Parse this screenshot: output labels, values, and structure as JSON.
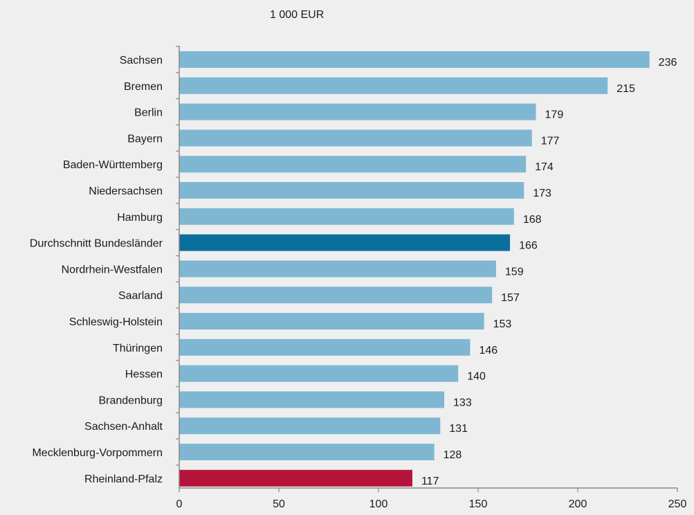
{
  "colors": {
    "background": "#efefef",
    "bar_default": "#7fb7d3",
    "bar_average": "#0b6f9d",
    "bar_highlight": "#b5133a",
    "axis": "#888888"
  },
  "chart_data": {
    "type": "bar",
    "orientation": "horizontal",
    "unit_label": "1 000 EUR",
    "categories": [
      "Sachsen",
      "Bremen",
      "Berlin",
      "Bayern",
      "Baden-Württemberg",
      "Niedersachsen",
      "Hamburg",
      "Durchschnitt Bundesländer",
      "Nordrhein-Westfalen",
      "Saarland",
      "Schleswig-Holstein",
      "Thüringen",
      "Hessen",
      "Brandenburg",
      "Sachsen-Anhalt",
      "Mecklenburg-Vorpommern",
      "Rheinland-Pfalz"
    ],
    "values": [
      236,
      215,
      179,
      177,
      174,
      173,
      168,
      166,
      159,
      157,
      153,
      146,
      140,
      133,
      131,
      128,
      117
    ],
    "bar_styles": [
      "default",
      "default",
      "default",
      "default",
      "default",
      "default",
      "default",
      "average",
      "default",
      "default",
      "default",
      "default",
      "default",
      "default",
      "default",
      "default",
      "highlight"
    ],
    "xlim": [
      0,
      250
    ],
    "xticks": [
      0,
      50,
      100,
      150,
      200,
      250
    ],
    "grid": false,
    "legend": "none"
  }
}
